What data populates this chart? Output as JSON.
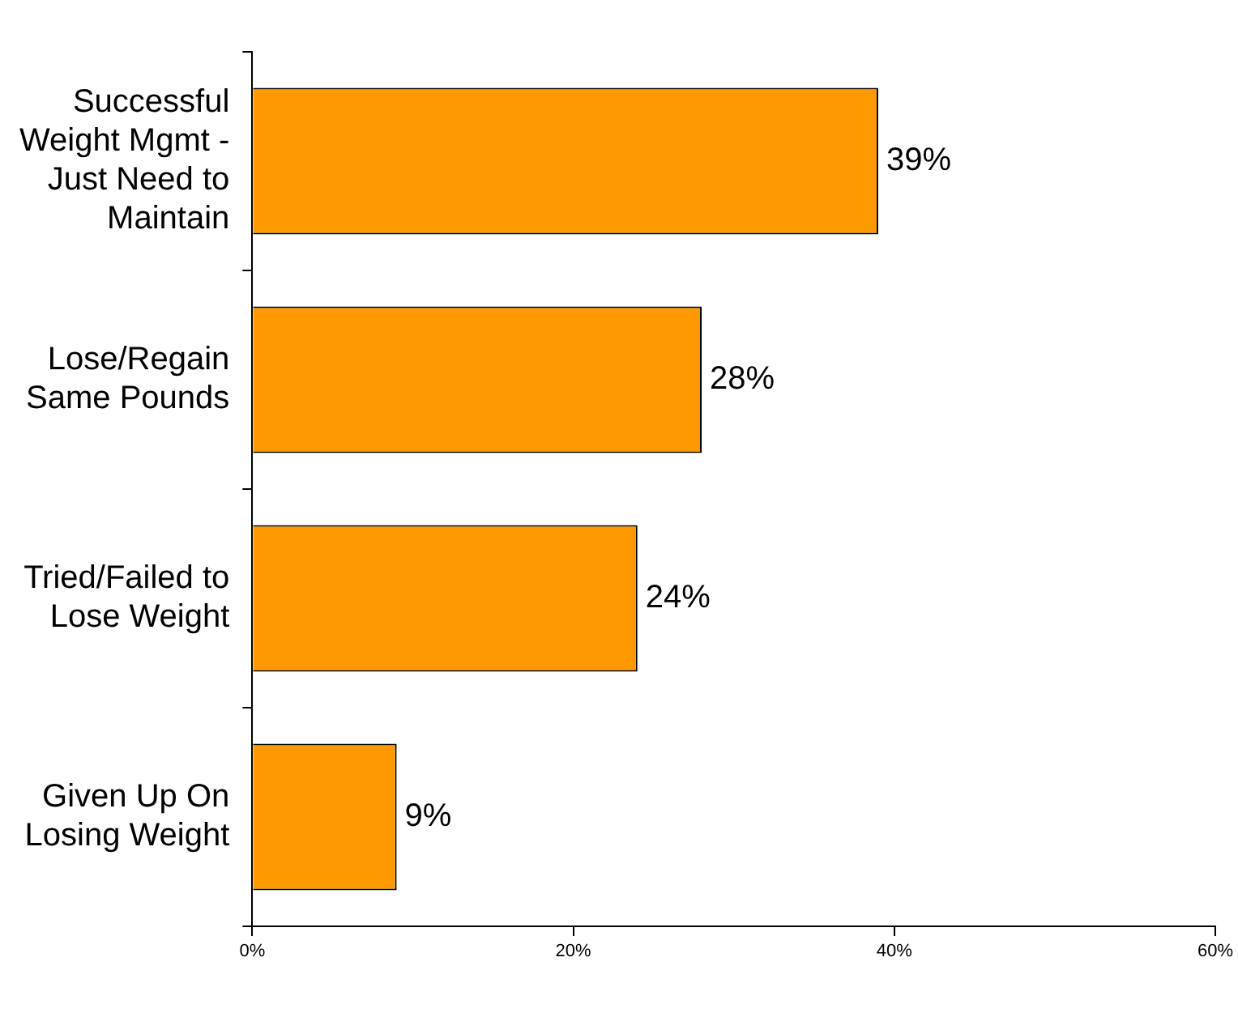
{
  "chart_data": {
    "type": "bar",
    "orientation": "horizontal",
    "categories": [
      "Successful Weight Mgmt - Just Need to Maintain",
      "Lose/Regain Same Pounds",
      "Tried/Failed to Lose Weight",
      "Given Up On Losing Weight"
    ],
    "values": [
      39,
      28,
      24,
      9
    ],
    "value_labels": [
      "39%",
      "28%",
      "24%",
      "9%"
    ],
    "color": "#ff9900",
    "xlim": [
      0,
      60
    ],
    "xticks": [
      {
        "value": 0,
        "label": "0%"
      },
      {
        "value": 20,
        "label": "20%"
      },
      {
        "value": 40,
        "label": "40%"
      },
      {
        "value": 60,
        "label": "60%"
      }
    ],
    "grid": false,
    "legend": false
  }
}
